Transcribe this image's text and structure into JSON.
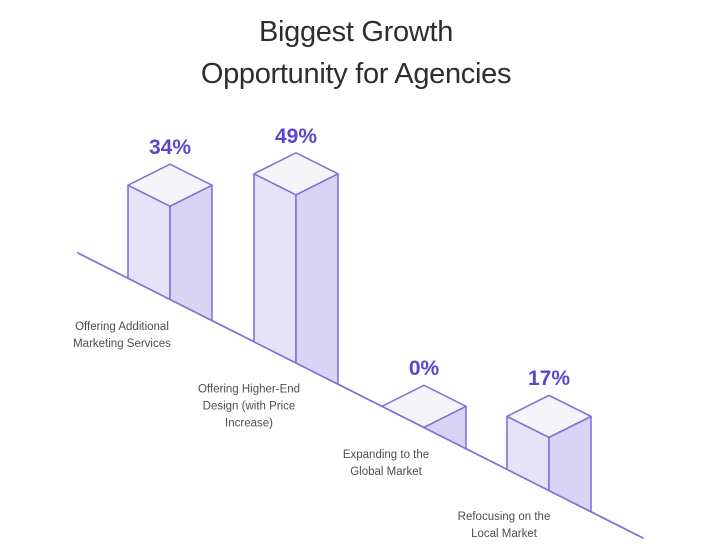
{
  "title": {
    "line1": "Biggest Growth",
    "line2": "Opportunity for Agencies"
  },
  "chart_data": {
    "type": "bar",
    "style": "isometric 3D boxes sitting on a slope line descending left-to-right",
    "title": "Biggest Growth Opportunity for Agencies",
    "categories": [
      [
        "Offering Additional",
        "Marketing Services"
      ],
      [
        "Offering Higher-End",
        "Design (with Price",
        "Increase)"
      ],
      [
        "Expanding to the",
        "Global Market"
      ],
      [
        "Refocusing on the",
        "Local Market"
      ]
    ],
    "values": [
      34,
      49,
      0,
      17
    ],
    "value_labels": [
      "34%",
      "49%",
      "0%",
      "17%"
    ],
    "xlabel": "",
    "ylabel": "",
    "legend": "none",
    "axes": "none",
    "grid": false
  },
  "colors": {
    "background": "#ffffff",
    "title_text": "#2e2e2e",
    "category_text": "#4e4e4e",
    "value_text": "#5a46cf",
    "edge_stroke": "#8074d6",
    "face_left": "#e6e2f8",
    "face_right": "#d9d3f4",
    "face_top": "#f5f4f8"
  }
}
